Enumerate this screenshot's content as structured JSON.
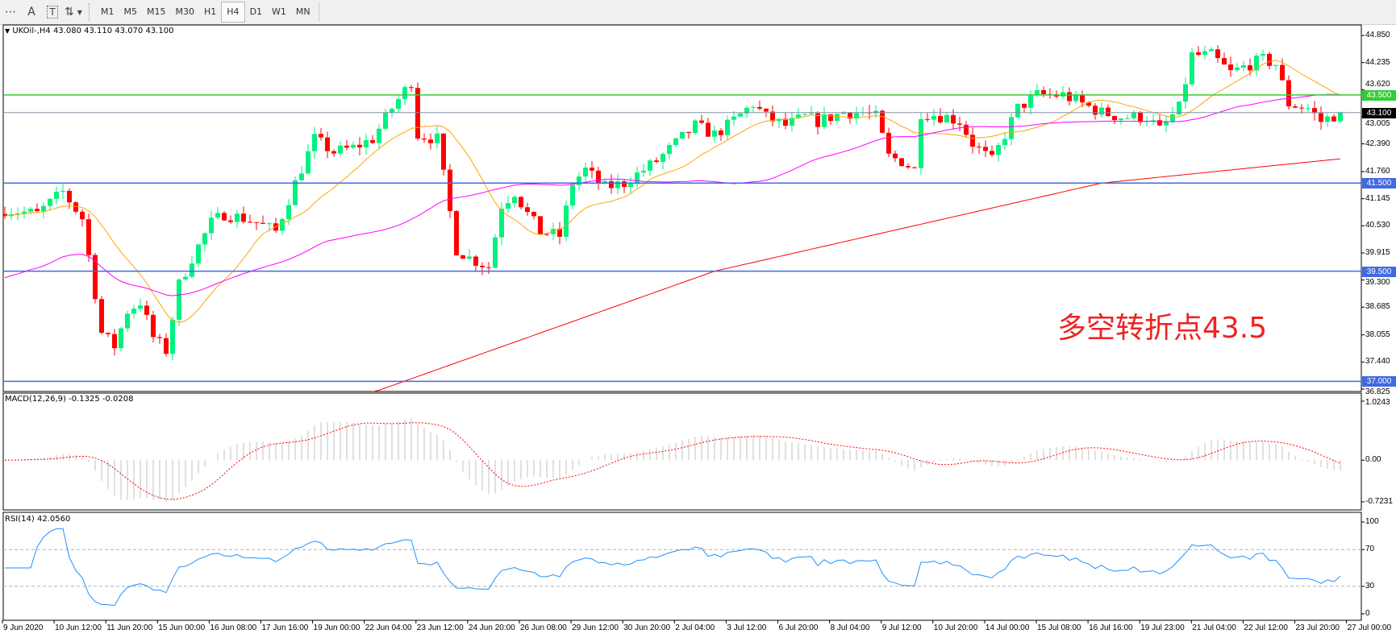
{
  "toolbar": {
    "icons": [
      "grid-icon",
      "text-a-icon",
      "text-label-icon",
      "arrows-icon"
    ],
    "text_a": "A",
    "text_t": "T",
    "timeframes": [
      "M1",
      "M5",
      "M15",
      "M30",
      "H1",
      "H4",
      "D1",
      "W1",
      "MN"
    ],
    "active_timeframe": "H4"
  },
  "chart": {
    "header": "UKOil-,H4  43.080 43.110 43.070 43.100",
    "symbol": "UKOil-",
    "timeframe": "H4",
    "ohlc": {
      "open": 43.08,
      "high": 43.11,
      "low": 43.07,
      "close": 43.1
    },
    "price_ticks": [
      "44.850",
      "44.235",
      "43.620",
      "43.005",
      "42.390",
      "41.760",
      "41.145",
      "40.530",
      "39.915",
      "39.300",
      "38.685",
      "38.055",
      "37.440",
      "36.825"
    ],
    "price_range": [
      36.825,
      44.85
    ],
    "current_price": "43.100",
    "horizontal_lines": [
      {
        "price": 43.5,
        "label": "43.500",
        "color": "#32cd32"
      },
      {
        "price": 41.5,
        "label": "41.500",
        "color": "#4169e1"
      },
      {
        "price": 39.5,
        "label": "39.500",
        "color": "#4169e1"
      },
      {
        "price": 37.0,
        "label": "37.000",
        "color": "#4169e1"
      }
    ],
    "annotation": "多空转折点43.5",
    "colors": {
      "bull": "#00f27f",
      "bear": "#ff0000",
      "ma_fast": "#ffa500",
      "ma_mid": "#ff00ff",
      "ma_slow": "#ff0000",
      "rsi": "#1e90ff",
      "macd_signal": "#ff0000",
      "macd_hist": "#c0c0c0",
      "annotation": "#ee2222"
    },
    "bar_count": 208,
    "price_path": [
      [
        0,
        40.9
      ],
      [
        5,
        40.8
      ],
      [
        9,
        41.3
      ],
      [
        12,
        40.7
      ],
      [
        14,
        39.0
      ],
      [
        15,
        38.1
      ],
      [
        17,
        37.8
      ],
      [
        19,
        38.6
      ],
      [
        21,
        38.8
      ],
      [
        23,
        38.0
      ],
      [
        25,
        37.7
      ],
      [
        27,
        39.2
      ],
      [
        29,
        39.8
      ],
      [
        32,
        40.6
      ],
      [
        34,
        40.8
      ],
      [
        37,
        40.7
      ],
      [
        39,
        40.6
      ],
      [
        42,
        40.4
      ],
      [
        45,
        41.5
      ],
      [
        48,
        42.5
      ],
      [
        51,
        42.2
      ],
      [
        54,
        42.3
      ],
      [
        57,
        42.5
      ],
      [
        60,
        43.2
      ],
      [
        63,
        43.8
      ],
      [
        64,
        42.6
      ],
      [
        67,
        42.5
      ],
      [
        70,
        40.0
      ],
      [
        72,
        39.8
      ],
      [
        75,
        39.6
      ],
      [
        77,
        41.0
      ],
      [
        79,
        41.3
      ],
      [
        81,
        40.8
      ],
      [
        83,
        40.4
      ],
      [
        86,
        40.3
      ],
      [
        88,
        41.5
      ],
      [
        90,
        41.8
      ],
      [
        93,
        41.4
      ],
      [
        96,
        41.5
      ],
      [
        99,
        41.8
      ],
      [
        101,
        42.0
      ],
      [
        104,
        42.4
      ],
      [
        107,
        42.8
      ],
      [
        110,
        42.6
      ],
      [
        112,
        42.8
      ],
      [
        116,
        43.3
      ],
      [
        118,
        43.0
      ],
      [
        121,
        42.8
      ],
      [
        124,
        43.0
      ],
      [
        126,
        42.9
      ],
      [
        130,
        43.1
      ],
      [
        133,
        43.1
      ],
      [
        135,
        43.0
      ],
      [
        137,
        42.1
      ],
      [
        139,
        42.0
      ],
      [
        141,
        41.8
      ],
      [
        142,
        43.1
      ],
      [
        146,
        43.0
      ],
      [
        148,
        42.9
      ],
      [
        150,
        42.4
      ],
      [
        153,
        42.0
      ],
      [
        155,
        42.6
      ],
      [
        157,
        43.2
      ],
      [
        160,
        43.5
      ],
      [
        164,
        43.5
      ],
      [
        167,
        43.3
      ],
      [
        170,
        43.1
      ],
      [
        173,
        43.0
      ],
      [
        177,
        43.0
      ],
      [
        179,
        42.7
      ],
      [
        182,
        43.2
      ],
      [
        184,
        44.4
      ],
      [
        187,
        44.4
      ],
      [
        190,
        44.0
      ],
      [
        193,
        44.2
      ],
      [
        195,
        44.3
      ],
      [
        197,
        44.2
      ],
      [
        199,
        43.3
      ],
      [
        202,
        43.2
      ],
      [
        204,
        42.9
      ],
      [
        207,
        43.1
      ]
    ],
    "slow_ma_path": [
      [
        40,
        36.2
      ],
      [
        58,
        36.8
      ],
      [
        110,
        39.5
      ],
      [
        170,
        41.5
      ],
      [
        207,
        42.05
      ]
    ]
  },
  "macd": {
    "label": "MACD(12,26,9) -0.1325 -0.0208",
    "ticks": [
      "1.0243",
      "0.00",
      "-0.7231"
    ],
    "range": [
      -0.7231,
      1.0243
    ]
  },
  "rsi": {
    "label": "RSI(14) 42.0560",
    "ticks": [
      "100",
      "70",
      "30",
      "0"
    ],
    "levels": [
      70,
      30
    ]
  },
  "time_axis": [
    "9 Jun 2020",
    "10 Jun 12:00",
    "11 Jun 20:00",
    "15 Jun 00:00",
    "16 Jun 08:00",
    "17 Jun 16:00",
    "19 Jun 00:00",
    "22 Jun 04:00",
    "23 Jun 12:00",
    "24 Jun 20:00",
    "26 Jun 08:00",
    "29 Jun 12:00",
    "30 Jun 20:00",
    "2 Jul 04:00",
    "3 Jul 12:00",
    "6 Jul 20:00",
    "8 Jul 04:00",
    "9 Jul 12:00",
    "10 Jul 20:00",
    "14 Jul 00:00",
    "15 Jul 08:00",
    "16 Jul 16:00",
    "19 Jul 23:00",
    "21 Jul 04:00",
    "22 Jul 12:00",
    "23 Jul 20:00",
    "27 Jul 00:00"
  ]
}
